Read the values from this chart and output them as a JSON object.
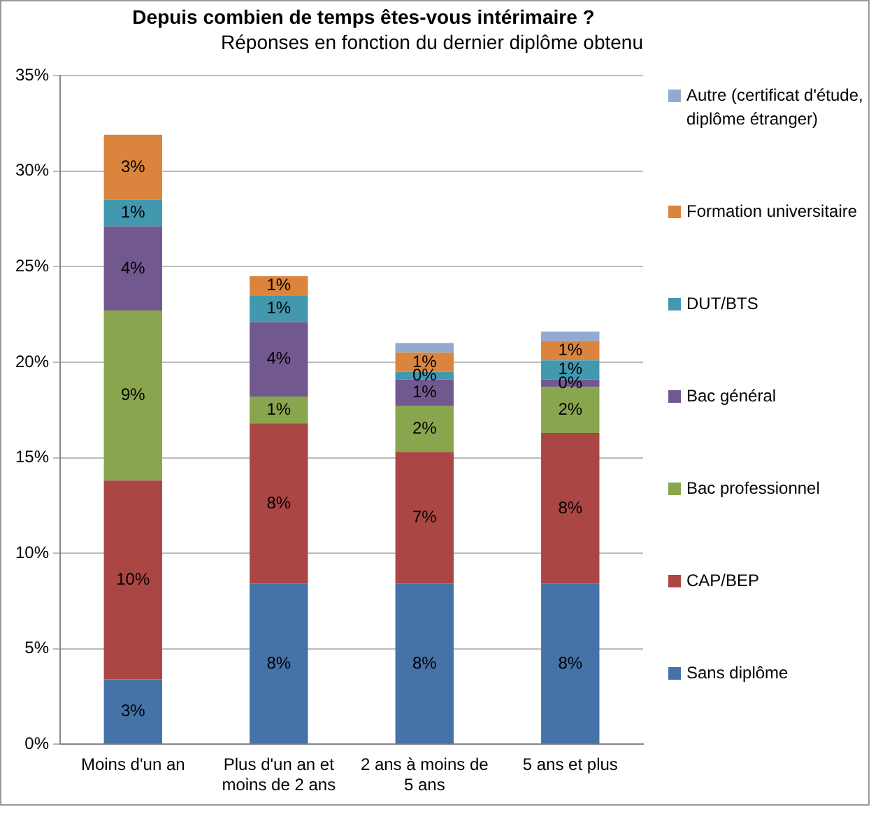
{
  "chart_data": {
    "type": "bar",
    "stacked": true,
    "title": "Depuis combien de temps êtes-vous intérimaire ?",
    "subtitle": "Réponses en fonction du dernier diplôme obtenu",
    "categories": [
      "Moins d'un an",
      "Plus d'un an et moins de 2 ans",
      "2 ans à moins de 5 ans",
      "5 ans et plus"
    ],
    "ylim": [
      0,
      35
    ],
    "yticks": [
      {
        "value": 0,
        "label": "0%"
      },
      {
        "value": 5,
        "label": "5%"
      },
      {
        "value": 10,
        "label": "10%"
      },
      {
        "value": 15,
        "label": "15%"
      },
      {
        "value": 20,
        "label": "20%"
      },
      {
        "value": 25,
        "label": "25%"
      },
      {
        "value": 30,
        "label": "30%"
      },
      {
        "value": 35,
        "label": "35%"
      }
    ],
    "grid": "y",
    "legend": "right",
    "series": [
      {
        "name": "Sans diplôme",
        "color": "#4572a7",
        "values": [
          3.4,
          8.4,
          8.4,
          8.4
        ],
        "value_labels": [
          "3%",
          "8%",
          "8%",
          "8%"
        ]
      },
      {
        "name": "CAP/BEP",
        "color": "#aa4643",
        "values": [
          10.4,
          8.4,
          6.9,
          7.9
        ],
        "value_labels": [
          "10%",
          "8%",
          "7%",
          "8%"
        ]
      },
      {
        "name": "Bac professionnel",
        "color": "#89a54e",
        "values": [
          8.9,
          1.4,
          2.4,
          2.4
        ],
        "value_labels": [
          "9%",
          "1%",
          "2%",
          "2%"
        ]
      },
      {
        "name": "Bac général",
        "color": "#71588f",
        "values": [
          4.4,
          3.9,
          1.4,
          0.4
        ],
        "value_labels": [
          "4%",
          "4%",
          "1%",
          "0%"
        ]
      },
      {
        "name": "DUT/BTS",
        "color": "#4198af",
        "values": [
          1.4,
          1.4,
          0.4,
          1.0
        ],
        "value_labels": [
          "1%",
          "1%",
          "0%",
          "1%"
        ]
      },
      {
        "name": "Formation universitaire",
        "color": "#db843d",
        "values": [
          3.4,
          1.0,
          1.0,
          1.0
        ],
        "value_labels": [
          "3%",
          "1%",
          "1%",
          "1%"
        ]
      },
      {
        "name": "Autre (certificat d'étude, diplôme étranger)",
        "color": "#93a9cf",
        "values": [
          null,
          null,
          0.5,
          0.5
        ]
      }
    ]
  }
}
